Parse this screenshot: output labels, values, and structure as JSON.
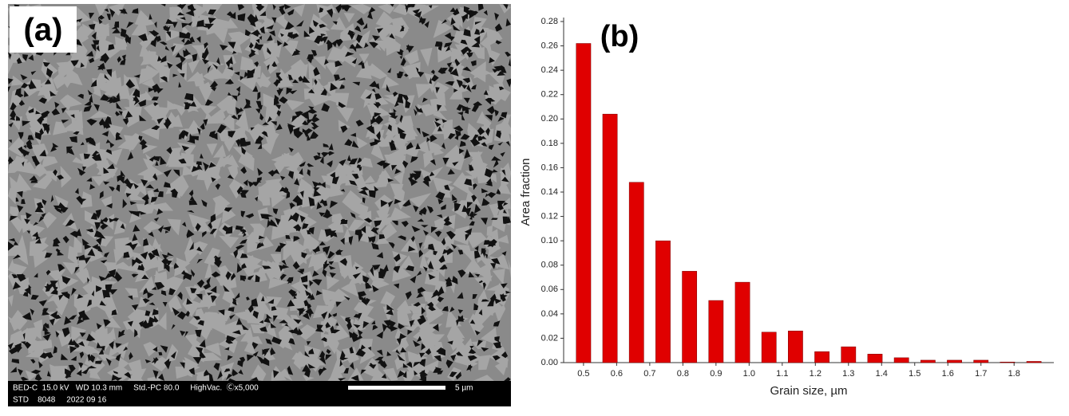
{
  "image_panel": {
    "label": "(a)",
    "info_line_1": "BED-C  15.0 kV   WD 10.3 mm     Std.-PC 80.0     HighVac.  Ⓒx5,000",
    "info_line_2": "STD    8048     2022 09 16",
    "scale_bar_label": "5 µm"
  },
  "chart_data": {
    "type": "bar",
    "annotation": "(b)",
    "x_label": "Grain size, µm",
    "y_label": "Area fraction",
    "color": "#e00000",
    "x": [
      0.5,
      0.58,
      0.66,
      0.74,
      0.82,
      0.9,
      0.98,
      1.06,
      1.14,
      1.22,
      1.3,
      1.38,
      1.46,
      1.54,
      1.62,
      1.7,
      1.78,
      1.86
    ],
    "values": [
      0.262,
      0.204,
      0.148,
      0.1,
      0.075,
      0.051,
      0.066,
      0.025,
      0.026,
      0.009,
      0.013,
      0.007,
      0.004,
      0.002,
      0.002,
      0.002,
      0.0005,
      0.001
    ],
    "xlim": [
      0.44,
      1.92
    ],
    "ylim": [
      0,
      0.28
    ],
    "xticks": [
      0.5,
      0.6,
      0.7,
      0.8,
      0.9,
      {
        "value": 1.0,
        "label": "1.0"
      },
      1.1,
      1.2,
      1.3,
      1.4,
      1.5,
      1.6,
      1.7,
      1.8
    ],
    "yticks": [
      {
        "value": 0,
        "label": "0.00"
      },
      {
        "value": 0.02,
        "label": "0.02"
      },
      {
        "value": 0.04,
        "label": "0.04"
      },
      {
        "value": 0.06,
        "label": "0.06"
      },
      {
        "value": 0.08,
        "label": "0.08"
      },
      {
        "value": 0.1,
        "label": "0.10"
      },
      {
        "value": 0.12,
        "label": "0.12"
      },
      {
        "value": 0.14,
        "label": "0.14"
      },
      {
        "value": 0.16,
        "label": "0.16"
      },
      {
        "value": 0.18,
        "label": "0.18"
      },
      {
        "value": 0.2,
        "label": "0.20"
      },
      {
        "value": 0.22,
        "label": "0.22"
      },
      {
        "value": 0.24,
        "label": "0.24"
      },
      {
        "value": 0.26,
        "label": "0.26"
      },
      {
        "value": 0.28,
        "label": "0.28"
      }
    ]
  }
}
